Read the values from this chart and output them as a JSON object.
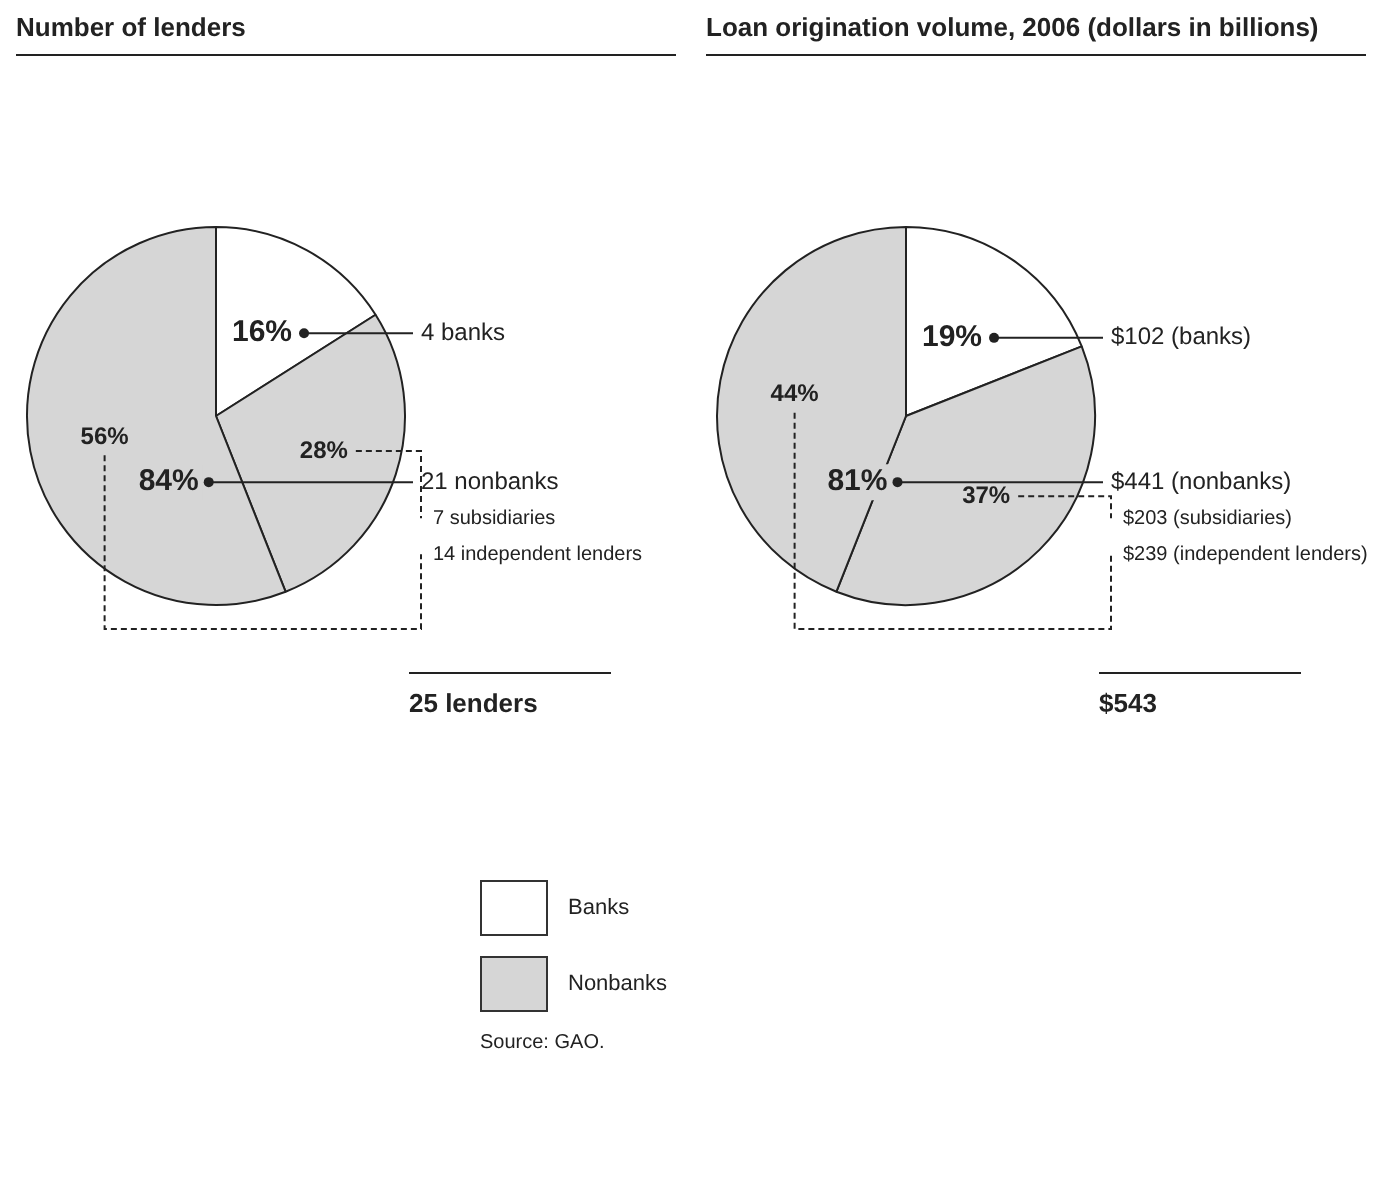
{
  "chart_data": [
    {
      "type": "pie",
      "title": "Number of lenders",
      "categories": [
        "4 banks",
        "7 subsidiaries",
        "14 independent lenders"
      ],
      "values": [
        16,
        28,
        56
      ],
      "value_labels": [
        "16%",
        "28%",
        "56%"
      ],
      "colors": [
        "#ffffff",
        "#d6d6d6",
        "#d6d6d6"
      ],
      "annotations": [
        "84%",
        "21 nonbanks",
        "25 lenders",
        "Banks",
        "Nonbanks",
        "Source: GAO."
      ]
    },
    {
      "type": "pie",
      "title": "Loan origination volume, 2006 (dollars in billions)",
      "categories": [
        "$102 (banks)",
        "$203 (subsidiaries)",
        "$239 (independent lenders)"
      ],
      "values": [
        19,
        37,
        44
      ],
      "value_labels": [
        "19%",
        "37%",
        "44%"
      ],
      "colors": [
        "#ffffff",
        "#d6d6d6",
        "#d6d6d6"
      ],
      "annotations": [
        "81%",
        "$441 (nonbanks)",
        "$543"
      ]
    }
  ]
}
